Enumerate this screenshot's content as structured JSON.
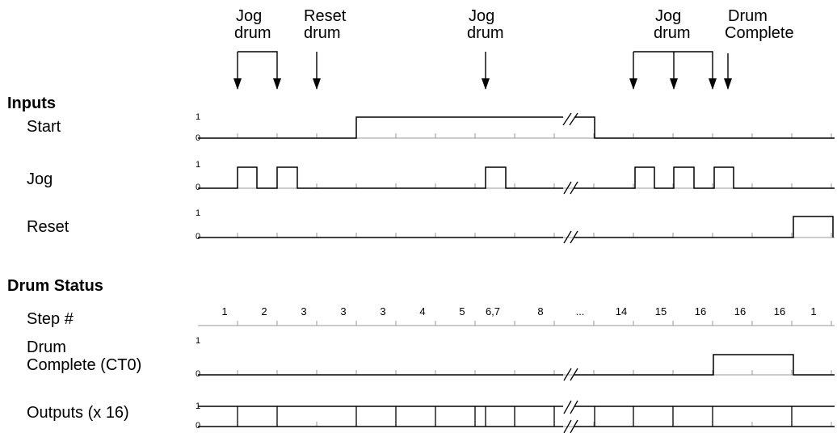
{
  "annotations": [
    {
      "line1": "Jog",
      "line2": "drum"
    },
    {
      "line1": "Reset",
      "line2": "drum"
    },
    {
      "line1": "Jog",
      "line2": "drum"
    },
    {
      "line1": "Jog",
      "line2": "drum"
    },
    {
      "line1": "Drum",
      "line2": "Complete"
    }
  ],
  "sections": {
    "inputs": "Inputs",
    "drum_status": "Drum Status"
  },
  "signals": {
    "start": "Start",
    "jog": "Jog",
    "reset": "Reset",
    "step": "Step #",
    "drum_complete_1": "Drum",
    "drum_complete_2": "Complete (CT0)",
    "outputs": "Outputs (x 16)"
  },
  "level_labels": {
    "high": "1",
    "low": "0"
  },
  "step_numbers": [
    "1",
    "2",
    "3",
    "3",
    "3",
    "4",
    "5",
    "6,7",
    "8",
    "...",
    "14",
    "15",
    "16",
    "16",
    "16",
    "1"
  ]
}
